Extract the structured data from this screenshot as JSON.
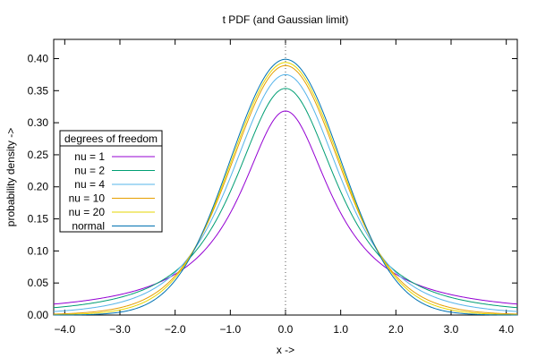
{
  "chart_data": {
    "type": "line",
    "title": "t PDF (and Gaussian limit)",
    "xlabel": "x ->",
    "ylabel": "probability density ->",
    "xlim": [
      -4.2,
      4.2
    ],
    "ylim": [
      0,
      0.43
    ],
    "x_ticks": [
      -4.0,
      -3.0,
      -2.0,
      -1.0,
      0.0,
      1.0,
      2.0,
      3.0,
      4.0
    ],
    "x_tick_labels": [
      "−4.0",
      "−3.0",
      "−2.0",
      "−1.0",
      "0.0",
      "1.0",
      "2.0",
      "3.0",
      "4.0"
    ],
    "y_ticks": [
      0.0,
      0.05,
      0.1,
      0.15,
      0.2,
      0.25,
      0.3,
      0.35,
      0.4
    ],
    "y_tick_labels": [
      "0.00",
      "0.05",
      "0.10",
      "0.15",
      "0.20",
      "0.25",
      "0.30",
      "0.35",
      "0.40"
    ],
    "vertical_reference_line": {
      "x": 0,
      "style": "dotted"
    },
    "grid": false,
    "legend": {
      "title": "degrees of freedom",
      "placement": "middle-left"
    },
    "series": [
      {
        "name": "nu = 1",
        "nu": 1,
        "color": "#9400d3"
      },
      {
        "name": "nu = 2",
        "nu": 2,
        "color": "#009e73"
      },
      {
        "name": "nu = 4",
        "nu": 4,
        "color": "#56b4e9"
      },
      {
        "name": "nu = 10",
        "nu": 10,
        "color": "#e69f00"
      },
      {
        "name": "nu = 20",
        "nu": 20,
        "color": "#e6d600"
      },
      {
        "name": "normal",
        "nu": null,
        "color": "#0072b2"
      }
    ],
    "sample_points": {
      "x": [
        -4,
        -3,
        -2,
        -1,
        0,
        1,
        2,
        3,
        4
      ],
      "nu = 1": [
        0.0187,
        0.0318,
        0.0637,
        0.1592,
        0.3183,
        0.1592,
        0.0637,
        0.0318,
        0.0187
      ],
      "nu = 2": [
        0.0131,
        0.0274,
        0.068,
        0.1925,
        0.3536,
        0.1925,
        0.068,
        0.0274,
        0.0131
      ],
      "nu = 4": [
        0.0067,
        0.0197,
        0.0663,
        0.2147,
        0.375,
        0.2147,
        0.0663,
        0.0197,
        0.0067
      ],
      "nu = 10": [
        0.002,
        0.0114,
        0.0611,
        0.2304,
        0.3891,
        0.2304,
        0.0611,
        0.0114,
        0.002
      ],
      "nu = 20": [
        0.001,
        0.0082,
        0.0581,
        0.236,
        0.394,
        0.236,
        0.0581,
        0.0082,
        0.001
      ],
      "normal": [
        0.0001,
        0.0044,
        0.054,
        0.242,
        0.3989,
        0.242,
        0.054,
        0.0044,
        0.0001
      ]
    }
  }
}
